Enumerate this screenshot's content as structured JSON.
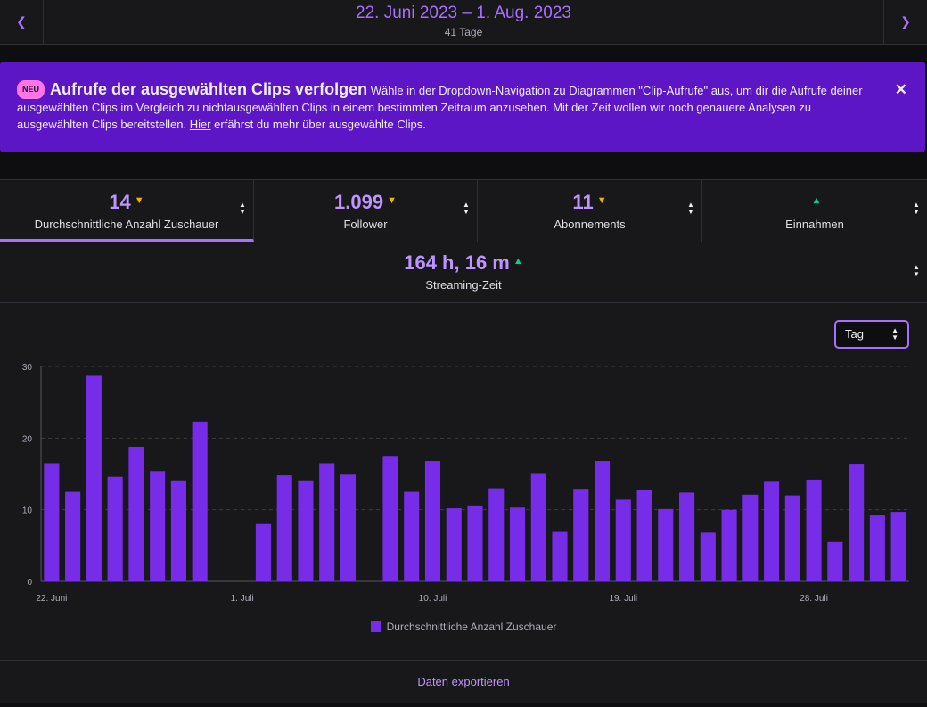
{
  "header": {
    "prev_icon": "chevron-left-icon",
    "next_icon": "chevron-right-icon",
    "date_range": "22. Juni 2023 – 1. Aug. 2023",
    "days": "41 Tage"
  },
  "banner": {
    "badge": "NEU",
    "title": "Aufrufe der ausgewählten Clips verfolgen",
    "body_before_link": "Wähle in der Dropdown-Navigation zu Diagrammen \"Clip-Aufrufe\" aus, um dir die Aufrufe deiner ausgewählten Clips im Vergleich zu nichtausgewählten Clips in einem bestimmten Zeitraum anzusehen. Mit der Zeit wollen wir noch genauere Analysen zu ausgewählten Clips bereitstellen.",
    "link": "Hier",
    "body_after_link": "erfährst du mehr über ausgewählte Clips.",
    "close_icon": "close-icon"
  },
  "metrics": [
    {
      "value": "14",
      "trend": "down",
      "label": "Durchschnittliche Anzahl Zuschauer",
      "active": true
    },
    {
      "value": "1.099",
      "trend": "down",
      "label": "Follower",
      "active": false
    },
    {
      "value": "11",
      "trend": "down",
      "label": "Abonnements",
      "active": false
    },
    {
      "value": "",
      "trend": "up",
      "label": "Einnahmen",
      "active": false
    }
  ],
  "streaming": {
    "value": "164 h, 16 m",
    "trend": "up",
    "label": "Streaming-Zeit"
  },
  "interval_select": {
    "value": "Tag"
  },
  "colors": {
    "accent": "#a970ff",
    "bar": "#772ce8",
    "down": "#f0b400",
    "up": "#00d28f",
    "banner": "#5c16c5"
  },
  "chart_data": {
    "type": "bar",
    "series": [
      {
        "name": "Durchschnittliche Anzahl Zuschauer",
        "values": [
          16.5,
          12.5,
          28.7,
          14.6,
          18.8,
          15.4,
          14.1,
          22.3,
          0,
          0,
          8,
          14.8,
          14.1,
          16.5,
          14.9,
          0,
          17.4,
          12.5,
          16.8,
          10.2,
          10.6,
          13,
          10.3,
          15,
          6.9,
          12.8,
          16.8,
          11.4,
          12.7,
          10.1,
          12.4,
          6.8,
          10,
          12.1,
          13.9,
          12,
          14.2,
          5.5,
          16.3,
          9.2,
          9.7
        ]
      }
    ],
    "x_tick_labels": [
      "22. Juni",
      "1. Juli",
      "10. Juli",
      "19. Juli",
      "28. Juli"
    ],
    "x_tick_indices": [
      0,
      9,
      18,
      27,
      36
    ],
    "y_ticks": [
      0,
      10,
      20,
      30
    ],
    "ylim": [
      0,
      30
    ],
    "grid": true,
    "legend": "bottom-center"
  },
  "export_label": "Daten exportieren"
}
